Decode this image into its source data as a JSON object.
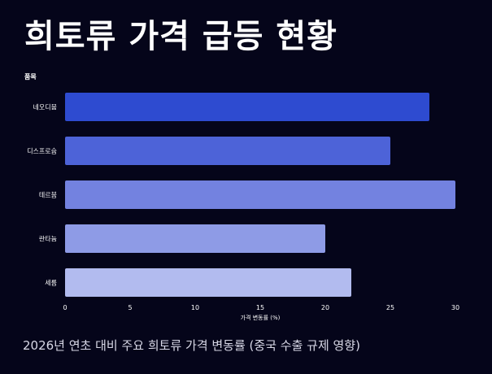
{
  "chart_data": {
    "type": "bar",
    "orientation": "horizontal",
    "title": "희토류 가격 급등 현황",
    "subtitle": "2026년 연초 대비 주요 희토류 가격 변동률 (중국 수출 규제 영향)",
    "categories": [
      "네오디뮴",
      "디스프로슘",
      "테르븀",
      "란타늄",
      "세륨"
    ],
    "values": [
      28,
      25,
      30,
      20,
      22
    ],
    "colors": [
      "#2e4bd0",
      "#4d63d8",
      "#7382e0",
      "#8e9be6",
      "#b2bbef"
    ],
    "ylabel": "품목",
    "xlabel": "가격 변동률 (%)",
    "xlim": [
      0,
      30
    ],
    "xticks": [
      0,
      5,
      10,
      15,
      20,
      25,
      30
    ],
    "grid": false,
    "legend": "none"
  }
}
